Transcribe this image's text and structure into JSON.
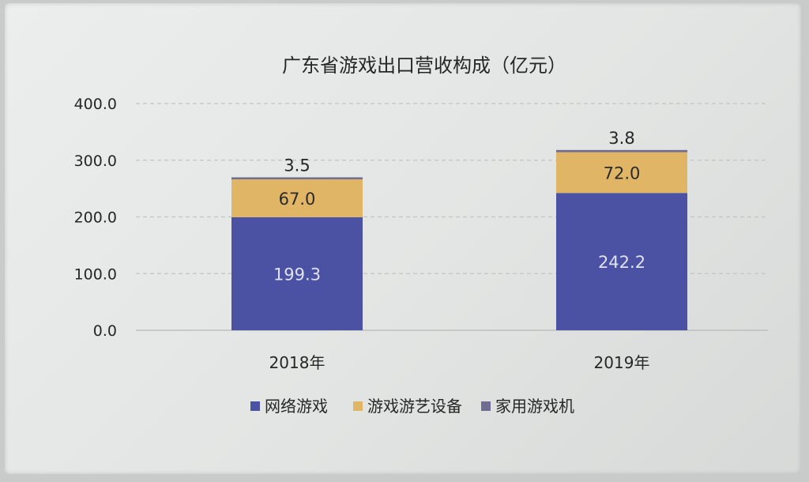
{
  "chart_data": {
    "type": "bar",
    "stacked": true,
    "title": "广东省游戏出口营收构成（亿元）",
    "categories": [
      "2018年",
      "2019年"
    ],
    "series": [
      {
        "name": "网络游戏",
        "values": [
          199.3,
          242.2
        ],
        "color": "#4b52a4",
        "label_color": "#dfe2f3"
      },
      {
        "name": "游戏游艺设备",
        "values": [
          67.0,
          72.0
        ],
        "color": "#e1b566",
        "label_color": "#2a2a2a"
      },
      {
        "name": "家用游戏机",
        "values": [
          3.5,
          3.8
        ],
        "color": "#6f6c92",
        "label_color": "#2a2a2a"
      }
    ],
    "data_labels": [
      [
        "199.3",
        "242.2"
      ],
      [
        "67.0",
        "72.0"
      ],
      [
        "3.5",
        "3.8"
      ]
    ],
    "y_ticks": [
      "0.0",
      "100.0",
      "200.0",
      "300.0",
      "400.0"
    ],
    "ylim": [
      0,
      400
    ],
    "grid": true,
    "grid_style": "dashed",
    "legend_position": "bottom"
  }
}
